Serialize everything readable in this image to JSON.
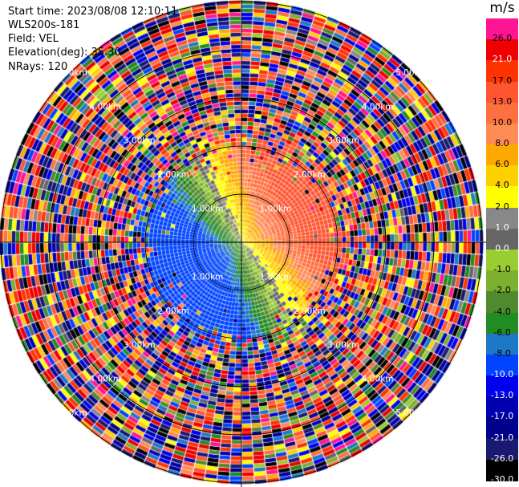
{
  "header": {
    "start_time": "Start time: 2023/08/08 12:10:11",
    "instrument": "WLS200s-181",
    "field": "Field: VEL",
    "elevation": "Elevation(deg): 35.30",
    "nrays": "NRays: 120"
  },
  "colorbar": {
    "unit": "m/s",
    "levels": [
      {
        "label": "26.0",
        "color": "#ff1493",
        "text": "#000000"
      },
      {
        "label": "21.0",
        "color": "#ee0000",
        "text": "#ffffff"
      },
      {
        "label": "17.0",
        "color": "#ff3300",
        "text": "#000000"
      },
      {
        "label": "13.0",
        "color": "#ff5530",
        "text": "#000000"
      },
      {
        "label": "10.0",
        "color": "#ff7040",
        "text": "#000000"
      },
      {
        "label": "8.0",
        "color": "#ff8c55",
        "text": "#000000"
      },
      {
        "label": "6.0",
        "color": "#ffaa00",
        "text": "#000000"
      },
      {
        "label": "4.0",
        "color": "#ffd000",
        "text": "#000000"
      },
      {
        "label": "2.0",
        "color": "#ffff00",
        "text": "#000000"
      },
      {
        "label": "1.0",
        "color": "#888888",
        "text": "#ffffff"
      },
      {
        "label": "0.0",
        "color": "#666666",
        "text": "#ffffff"
      },
      {
        "label": "-1.0",
        "color": "#9acd32",
        "text": "#000000"
      },
      {
        "label": "-2.0",
        "color": "#7db030",
        "text": "#000000"
      },
      {
        "label": "-4.0",
        "color": "#4f8a2c",
        "text": "#000000"
      },
      {
        "label": "-6.0",
        "color": "#228b22",
        "text": "#000000"
      },
      {
        "label": "-8.0",
        "color": "#1e78c8",
        "text": "#000000"
      },
      {
        "label": "-10.0",
        "color": "#0044ff",
        "text": "#ffffff"
      },
      {
        "label": "-13.0",
        "color": "#0000ee",
        "text": "#ffffff"
      },
      {
        "label": "-17.0",
        "color": "#0000b0",
        "text": "#ffffff"
      },
      {
        "label": "-21.0",
        "color": "#00008b",
        "text": "#ffffff"
      },
      {
        "label": "-26.0",
        "color": "#191970",
        "text": "#ffffff"
      },
      {
        "label": "-30.0",
        "color": "#000000",
        "text": "#ffffff"
      }
    ]
  },
  "range_rings": [
    "1.00km",
    "2.00km",
    "3.00km",
    "4.00km",
    "5.00km"
  ]
}
